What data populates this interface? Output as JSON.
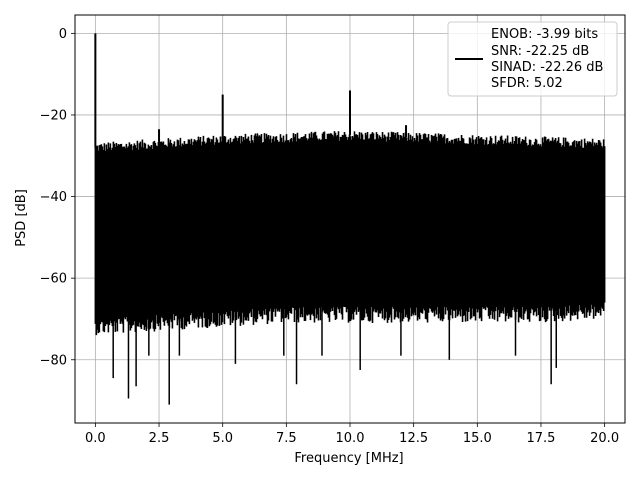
{
  "chart_data": {
    "type": "line",
    "xlabel": "Frequency [MHz]",
    "ylabel": "PSD [dB]",
    "xlim": [
      -0.8,
      20.8
    ],
    "ylim": [
      -95.5,
      4.5
    ],
    "x_ticks": [
      0.0,
      2.5,
      5.0,
      7.5,
      10.0,
      12.5,
      15.0,
      17.5,
      20.0
    ],
    "x_tick_labels": [
      "0.0",
      "2.5",
      "5.0",
      "7.5",
      "10.0",
      "12.5",
      "15.0",
      "17.5",
      "20.0"
    ],
    "y_ticks": [
      0,
      -20,
      -40,
      -60,
      -80
    ],
    "y_tick_labels": [
      "0",
      "−20",
      "−40",
      "−60",
      "−80"
    ],
    "grid": true,
    "line_color": "#000000",
    "legend": {
      "placement": "top-right",
      "entries": [
        "ENOB: -3.99 bits",
        "SNR: -22.25 dB",
        "SINAD: -22.26 dB",
        "SFDR: 5.02"
      ]
    },
    "series": [
      {
        "noise_floor_upper_db": [
          [
            0.0,
            -28
          ],
          [
            2.5,
            -27
          ],
          [
            5.0,
            -26
          ],
          [
            7.5,
            -25.5
          ],
          [
            10.0,
            -25
          ],
          [
            12.5,
            -25.5
          ],
          [
            15.0,
            -26
          ],
          [
            17.5,
            -26.5
          ],
          [
            20.0,
            -27
          ]
        ],
        "noise_floor_lower_db": [
          [
            0.0,
            -70
          ],
          [
            2.5,
            -69
          ],
          [
            5.0,
            -68
          ],
          [
            7.5,
            -67
          ],
          [
            10.0,
            -67
          ],
          [
            12.5,
            -67
          ],
          [
            15.0,
            -67
          ],
          [
            17.5,
            -67
          ],
          [
            20.0,
            -66
          ]
        ],
        "peaks": [
          {
            "x": 0.0,
            "y": 0.0
          },
          {
            "x": 2.5,
            "y": -23.5
          },
          {
            "x": 5.0,
            "y": -15.0
          },
          {
            "x": 10.0,
            "y": -14.0
          },
          {
            "x": 12.2,
            "y": -22.5
          }
        ],
        "dips": [
          {
            "x": 0.7,
            "y": -84.5
          },
          {
            "x": 1.3,
            "y": -89.5
          },
          {
            "x": 1.6,
            "y": -86.5
          },
          {
            "x": 2.1,
            "y": -79.0
          },
          {
            "x": 2.9,
            "y": -91.0
          },
          {
            "x": 3.3,
            "y": -79.0
          },
          {
            "x": 5.5,
            "y": -81.0
          },
          {
            "x": 7.4,
            "y": -79.0
          },
          {
            "x": 7.9,
            "y": -86.0
          },
          {
            "x": 8.9,
            "y": -79.0
          },
          {
            "x": 10.4,
            "y": -82.5
          },
          {
            "x": 12.0,
            "y": -79.0
          },
          {
            "x": 13.9,
            "y": -80.0
          },
          {
            "x": 16.5,
            "y": -79.0
          },
          {
            "x": 17.9,
            "y": -86.0
          },
          {
            "x": 18.1,
            "y": -82.0
          }
        ]
      }
    ]
  }
}
